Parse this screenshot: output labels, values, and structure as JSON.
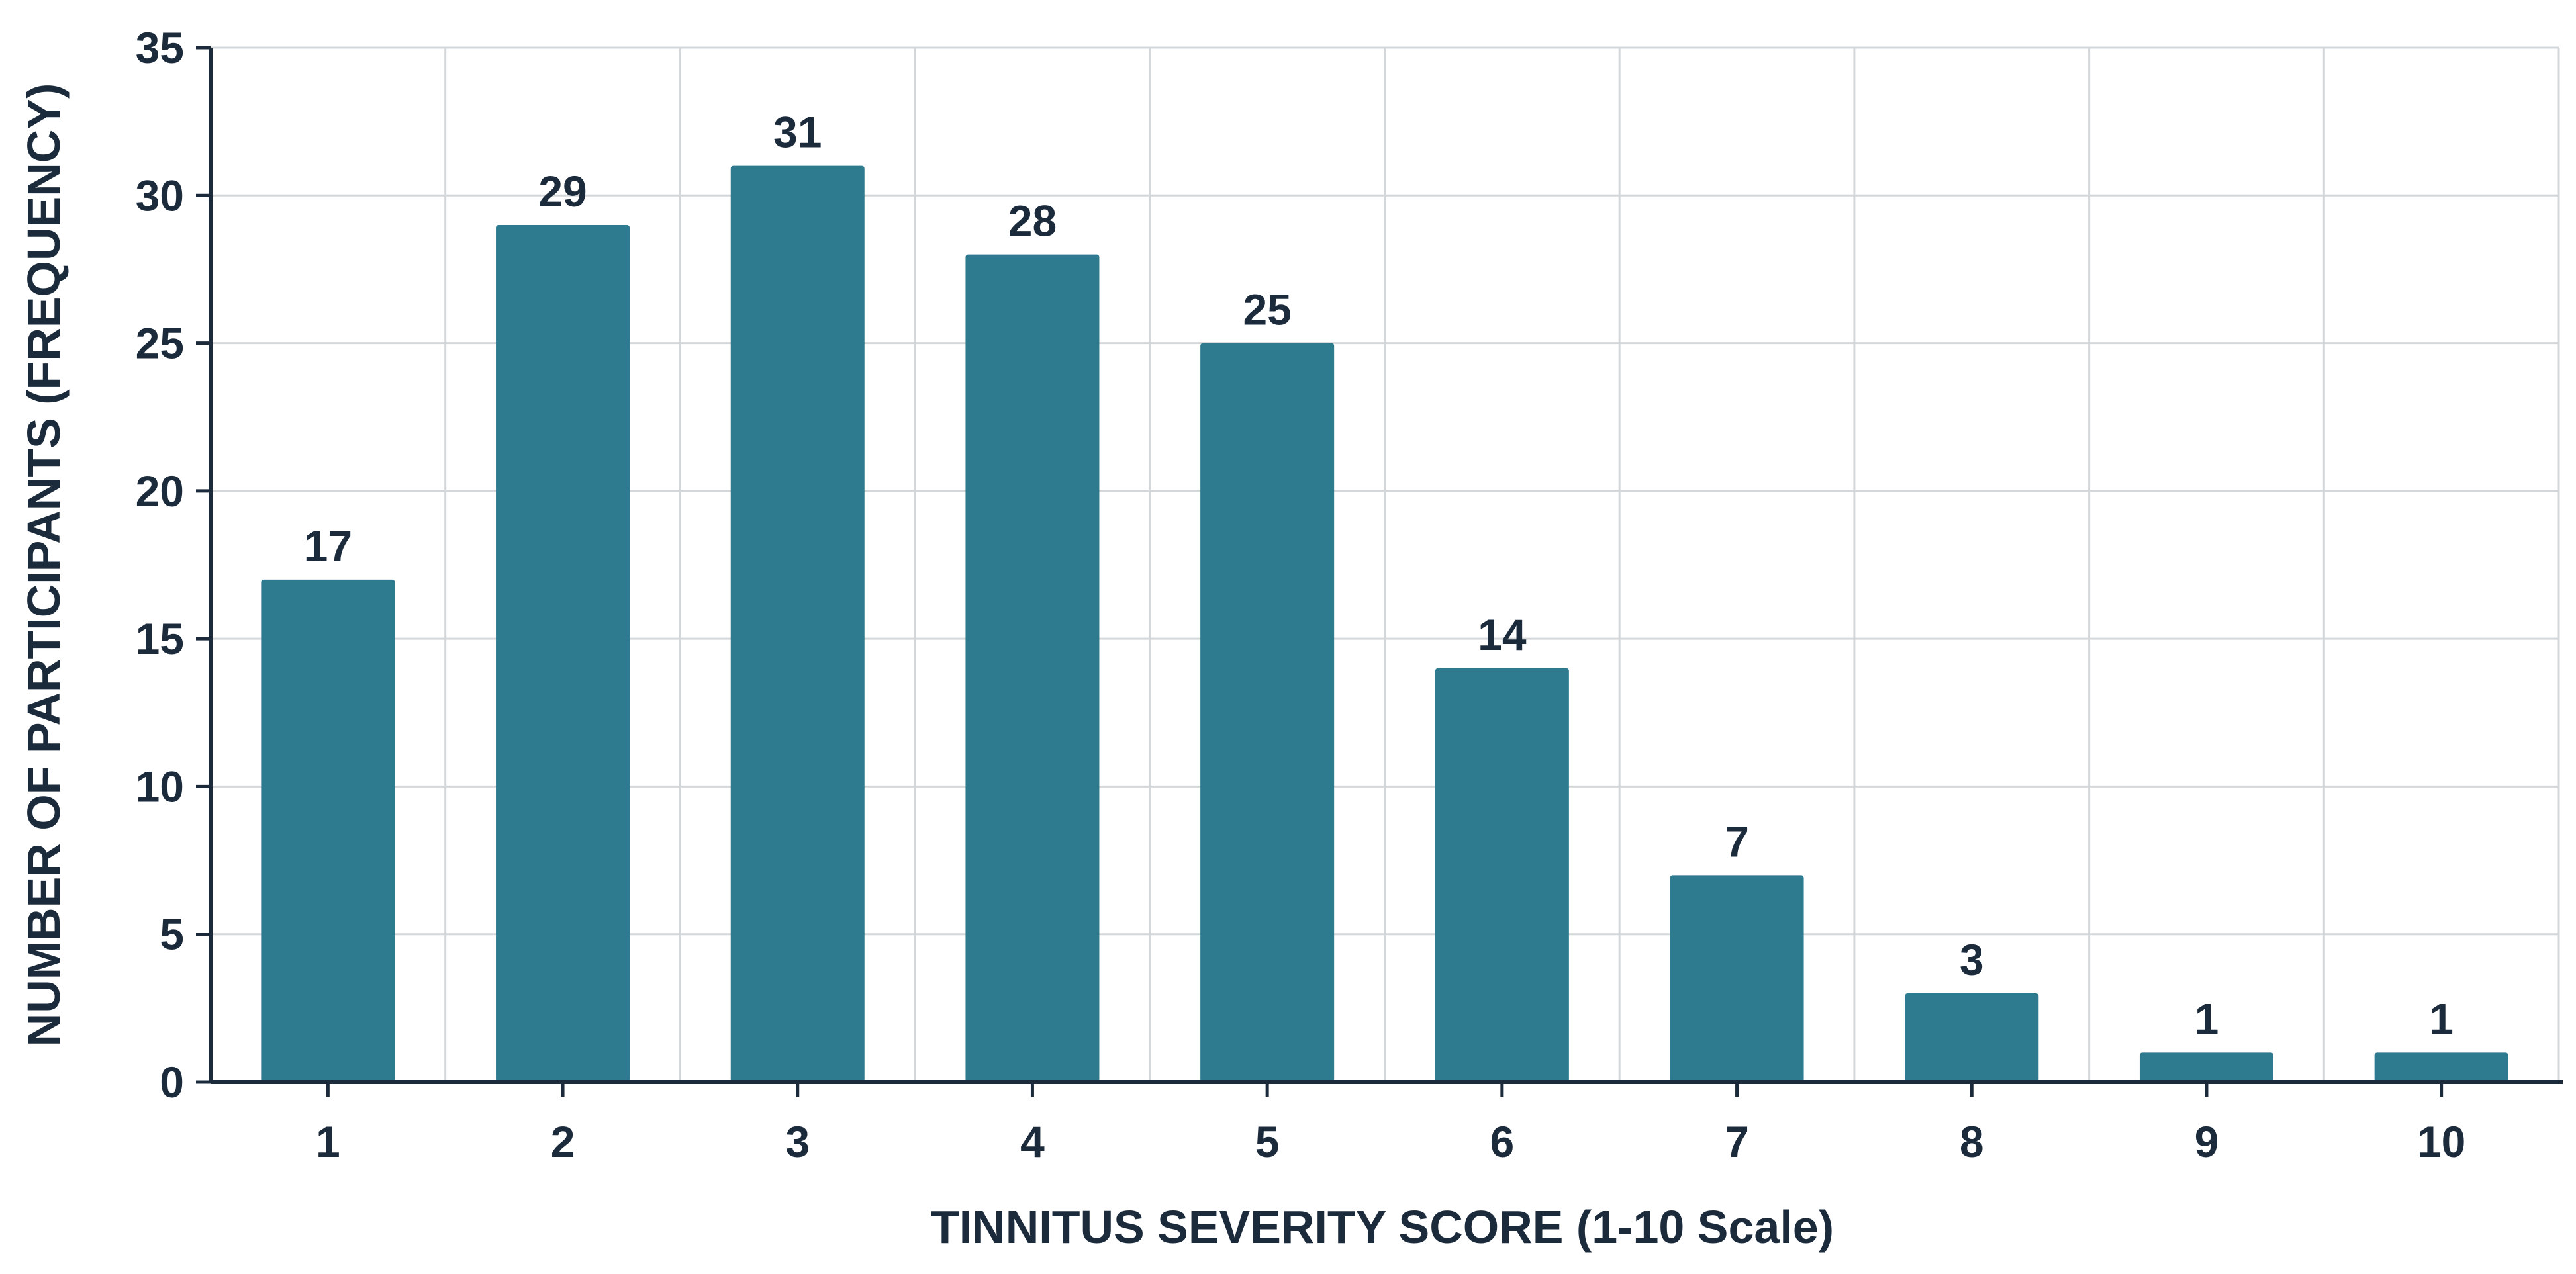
{
  "chart_data": {
    "type": "bar",
    "title": "",
    "xlabel": "TINNITUS SEVERITY SCORE (1-10 Scale)",
    "ylabel": "NUMBER OF PARTICIPANTS (FREQUENCY)",
    "categories": [
      "1",
      "2",
      "3",
      "4",
      "5",
      "6",
      "7",
      "8",
      "9",
      "10"
    ],
    "values": [
      17,
      29,
      31,
      28,
      25,
      14,
      7,
      3,
      1,
      1
    ],
    "data_labels": [
      "17",
      "29",
      "31",
      "28",
      "25",
      "14",
      "7",
      "3",
      "1",
      "1"
    ],
    "ylim": [
      0,
      35
    ],
    "y_ticks": [
      0,
      5,
      10,
      15,
      20,
      25,
      30,
      35
    ],
    "grid": true,
    "legend": "none",
    "bar_color": "#2e7a8f",
    "text_color": "#1c2b3c",
    "grid_color": "#d4d7da",
    "axis_color": "#1c2b3c"
  }
}
